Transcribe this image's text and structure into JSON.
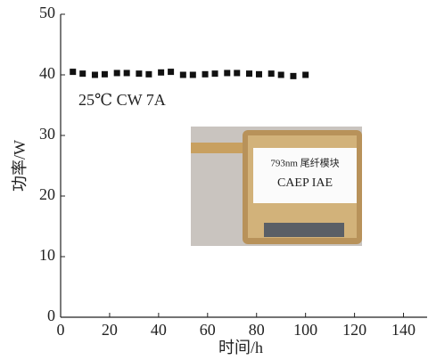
{
  "chart_data": {
    "type": "scatter",
    "x_label": "时间/h",
    "y_label": "功率/W",
    "annotation": "25℃ CW 7A",
    "inset_labels": [
      "793nm 尾纤模块",
      "CAEP IAE"
    ],
    "series": [
      {
        "name": "功率",
        "color": "#111111",
        "x": [
          5,
          9,
          14,
          18,
          23,
          27,
          32,
          36,
          41,
          45,
          50,
          54,
          59,
          63,
          68,
          72,
          77,
          81,
          86,
          90,
          95,
          100
        ],
        "values": [
          40.5,
          40.2,
          40,
          40.1,
          40.3,
          40.3,
          40.2,
          40.1,
          40.4,
          40.5,
          40,
          40,
          40.1,
          40.2,
          40.3,
          40.3,
          40.2,
          40.1,
          40.2,
          40,
          39.8,
          40
        ]
      }
    ],
    "xlim": [
      0,
      150
    ],
    "xticks": [
      0,
      20,
      40,
      60,
      80,
      100,
      120,
      140
    ],
    "ylim": [
      0,
      50
    ],
    "yticks": [
      0,
      10,
      20,
      30,
      40,
      50
    ]
  }
}
